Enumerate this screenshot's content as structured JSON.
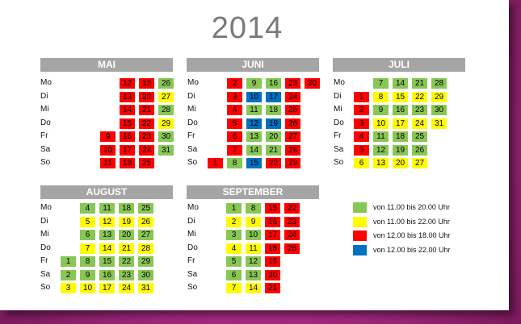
{
  "title": "2014",
  "colors": {
    "green": "#88c755",
    "yellow": "#fffb00",
    "red": "#ff0000",
    "blue": "#0070c0"
  },
  "legend": [
    {
      "color": "green",
      "label": "von 11.00 bis 20.00 Uhr"
    },
    {
      "color": "yellow",
      "label": "von 11.00 bis 22.00 Uhr"
    },
    {
      "color": "red",
      "label": "von 12.00 bis 18.00 Uhr"
    },
    {
      "color": "blue",
      "label": "von 12.00 bis 22.00 Uhr"
    }
  ],
  "months": [
    {
      "name": "MAI",
      "days": [
        "Mo",
        "Di",
        "Mi",
        "Do",
        "Fr",
        "Sa",
        "So"
      ],
      "rows": [
        [
          null,
          null,
          {
            "n": "12",
            "c": "red"
          },
          {
            "n": "19",
            "c": "red"
          },
          {
            "n": "26",
            "c": "green"
          }
        ],
        [
          null,
          null,
          {
            "n": "13",
            "c": "red"
          },
          {
            "n": "20",
            "c": "red"
          },
          {
            "n": "27",
            "c": "yellow"
          }
        ],
        [
          null,
          null,
          {
            "n": "14",
            "c": "red"
          },
          {
            "n": "21",
            "c": "red"
          },
          {
            "n": "28",
            "c": "green"
          }
        ],
        [
          null,
          null,
          {
            "n": "15",
            "c": "red"
          },
          {
            "n": "22",
            "c": "red"
          },
          {
            "n": "29",
            "c": "yellow"
          }
        ],
        [
          null,
          {
            "n": "9",
            "c": "red"
          },
          {
            "n": "16",
            "c": "red"
          },
          {
            "n": "23",
            "c": "red"
          },
          {
            "n": "30",
            "c": "green"
          }
        ],
        [
          null,
          {
            "n": "10",
            "c": "red"
          },
          {
            "n": "17",
            "c": "red"
          },
          {
            "n": "24",
            "c": "red"
          },
          {
            "n": "31",
            "c": "green"
          }
        ],
        [
          null,
          {
            "n": "11",
            "c": "red"
          },
          {
            "n": "18",
            "c": "red"
          },
          {
            "n": "25",
            "c": "red"
          },
          null
        ]
      ]
    },
    {
      "name": "JUNI",
      "days": [
        "Mo",
        "Di",
        "Mi",
        "Do",
        "Fr",
        "Sa",
        "So"
      ],
      "rows": [
        [
          null,
          {
            "n": "2",
            "c": "red"
          },
          {
            "n": "9",
            "c": "green"
          },
          {
            "n": "16",
            "c": "green"
          },
          {
            "n": "23",
            "c": "red"
          },
          {
            "n": "30",
            "c": "red"
          }
        ],
        [
          null,
          {
            "n": "3",
            "c": "red"
          },
          {
            "n": "10",
            "c": "blue"
          },
          {
            "n": "17",
            "c": "blue"
          },
          {
            "n": "24",
            "c": "red"
          },
          null
        ],
        [
          null,
          {
            "n": "4",
            "c": "red"
          },
          {
            "n": "11",
            "c": "green"
          },
          {
            "n": "18",
            "c": "green"
          },
          {
            "n": "25",
            "c": "red"
          },
          null
        ],
        [
          null,
          {
            "n": "5",
            "c": "red"
          },
          {
            "n": "12",
            "c": "blue"
          },
          {
            "n": "19",
            "c": "blue"
          },
          {
            "n": "26",
            "c": "red"
          },
          null
        ],
        [
          null,
          {
            "n": "6",
            "c": "red"
          },
          {
            "n": "13",
            "c": "green"
          },
          {
            "n": "20",
            "c": "green"
          },
          {
            "n": "27",
            "c": "red"
          },
          null
        ],
        [
          null,
          {
            "n": "7",
            "c": "red"
          },
          {
            "n": "14",
            "c": "green"
          },
          {
            "n": "21",
            "c": "green"
          },
          {
            "n": "28",
            "c": "red"
          },
          null
        ],
        [
          {
            "n": "1",
            "c": "red"
          },
          {
            "n": "8",
            "c": "green"
          },
          {
            "n": "15",
            "c": "blue"
          },
          {
            "n": "22",
            "c": "red"
          },
          {
            "n": "29",
            "c": "red"
          },
          null
        ]
      ]
    },
    {
      "name": "JULI",
      "days": [
        "Mo",
        "Di",
        "Mi",
        "Do",
        "Fr",
        "Sa",
        "So"
      ],
      "rows": [
        [
          null,
          {
            "n": "7",
            "c": "green"
          },
          {
            "n": "14",
            "c": "green"
          },
          {
            "n": "21",
            "c": "green"
          },
          {
            "n": "28",
            "c": "green"
          }
        ],
        [
          {
            "n": "1",
            "c": "red"
          },
          {
            "n": "8",
            "c": "yellow"
          },
          {
            "n": "15",
            "c": "yellow"
          },
          {
            "n": "22",
            "c": "yellow"
          },
          {
            "n": "29",
            "c": "yellow"
          }
        ],
        [
          {
            "n": "2",
            "c": "red"
          },
          {
            "n": "9",
            "c": "green"
          },
          {
            "n": "16",
            "c": "green"
          },
          {
            "n": "23",
            "c": "green"
          },
          {
            "n": "30",
            "c": "green"
          }
        ],
        [
          {
            "n": "3",
            "c": "red"
          },
          {
            "n": "10",
            "c": "yellow"
          },
          {
            "n": "17",
            "c": "yellow"
          },
          {
            "n": "24",
            "c": "yellow"
          },
          {
            "n": "31",
            "c": "yellow"
          }
        ],
        [
          {
            "n": "4",
            "c": "red"
          },
          {
            "n": "11",
            "c": "green"
          },
          {
            "n": "18",
            "c": "green"
          },
          {
            "n": "25",
            "c": "green"
          },
          null
        ],
        [
          {
            "n": "5",
            "c": "red"
          },
          {
            "n": "12",
            "c": "green"
          },
          {
            "n": "19",
            "c": "green"
          },
          {
            "n": "26",
            "c": "green"
          },
          null
        ],
        [
          {
            "n": "6",
            "c": "yellow"
          },
          {
            "n": "13",
            "c": "yellow"
          },
          {
            "n": "20",
            "c": "yellow"
          },
          {
            "n": "27",
            "c": "yellow"
          },
          null
        ]
      ]
    },
    {
      "name": "AUGUST",
      "days": [
        "Mo",
        "Di",
        "Mi",
        "Do",
        "Fr",
        "Sa",
        "So"
      ],
      "rows": [
        [
          null,
          {
            "n": "4",
            "c": "green"
          },
          {
            "n": "11",
            "c": "green"
          },
          {
            "n": "18",
            "c": "green"
          },
          {
            "n": "25",
            "c": "green"
          }
        ],
        [
          null,
          {
            "n": "5",
            "c": "yellow"
          },
          {
            "n": "12",
            "c": "yellow"
          },
          {
            "n": "19",
            "c": "yellow"
          },
          {
            "n": "26",
            "c": "yellow"
          }
        ],
        [
          null,
          {
            "n": "6",
            "c": "green"
          },
          {
            "n": "13",
            "c": "green"
          },
          {
            "n": "20",
            "c": "green"
          },
          {
            "n": "27",
            "c": "green"
          }
        ],
        [
          null,
          {
            "n": "7",
            "c": "yellow"
          },
          {
            "n": "14",
            "c": "yellow"
          },
          {
            "n": "21",
            "c": "yellow"
          },
          {
            "n": "28",
            "c": "yellow"
          }
        ],
        [
          {
            "n": "1",
            "c": "green"
          },
          {
            "n": "8",
            "c": "green"
          },
          {
            "n": "15",
            "c": "green"
          },
          {
            "n": "22",
            "c": "green"
          },
          {
            "n": "29",
            "c": "green"
          }
        ],
        [
          {
            "n": "2",
            "c": "green"
          },
          {
            "n": "9",
            "c": "green"
          },
          {
            "n": "16",
            "c": "green"
          },
          {
            "n": "23",
            "c": "green"
          },
          {
            "n": "30",
            "c": "green"
          }
        ],
        [
          {
            "n": "3",
            "c": "yellow"
          },
          {
            "n": "10",
            "c": "yellow"
          },
          {
            "n": "17",
            "c": "yellow"
          },
          {
            "n": "24",
            "c": "yellow"
          },
          {
            "n": "31",
            "c": "yellow"
          }
        ]
      ]
    },
    {
      "name": "SEPTEMBER",
      "days": [
        "Mo",
        "Di",
        "Mi",
        "Do",
        "Fr",
        "Sa",
        "So"
      ],
      "rows": [
        [
          {
            "n": "1",
            "c": "green"
          },
          {
            "n": "8",
            "c": "green"
          },
          {
            "n": "15",
            "c": "red"
          },
          {
            "n": "22",
            "c": "red"
          }
        ],
        [
          {
            "n": "2",
            "c": "yellow"
          },
          {
            "n": "9",
            "c": "yellow"
          },
          {
            "n": "16",
            "c": "red"
          },
          {
            "n": "23",
            "c": "red"
          }
        ],
        [
          {
            "n": "3",
            "c": "green"
          },
          {
            "n": "10",
            "c": "green"
          },
          {
            "n": "17",
            "c": "red"
          },
          {
            "n": "24",
            "c": "red"
          }
        ],
        [
          {
            "n": "4",
            "c": "yellow"
          },
          {
            "n": "11",
            "c": "yellow"
          },
          {
            "n": "18",
            "c": "red"
          },
          {
            "n": "25",
            "c": "red"
          }
        ],
        [
          {
            "n": "5",
            "c": "green"
          },
          {
            "n": "12",
            "c": "green"
          },
          {
            "n": "19",
            "c": "red"
          },
          null
        ],
        [
          {
            "n": "6",
            "c": "green"
          },
          {
            "n": "13",
            "c": "green"
          },
          {
            "n": "20",
            "c": "red"
          },
          null
        ],
        [
          {
            "n": "7",
            "c": "yellow"
          },
          {
            "n": "14",
            "c": "yellow"
          },
          {
            "n": "21",
            "c": "red"
          },
          null
        ]
      ]
    }
  ]
}
